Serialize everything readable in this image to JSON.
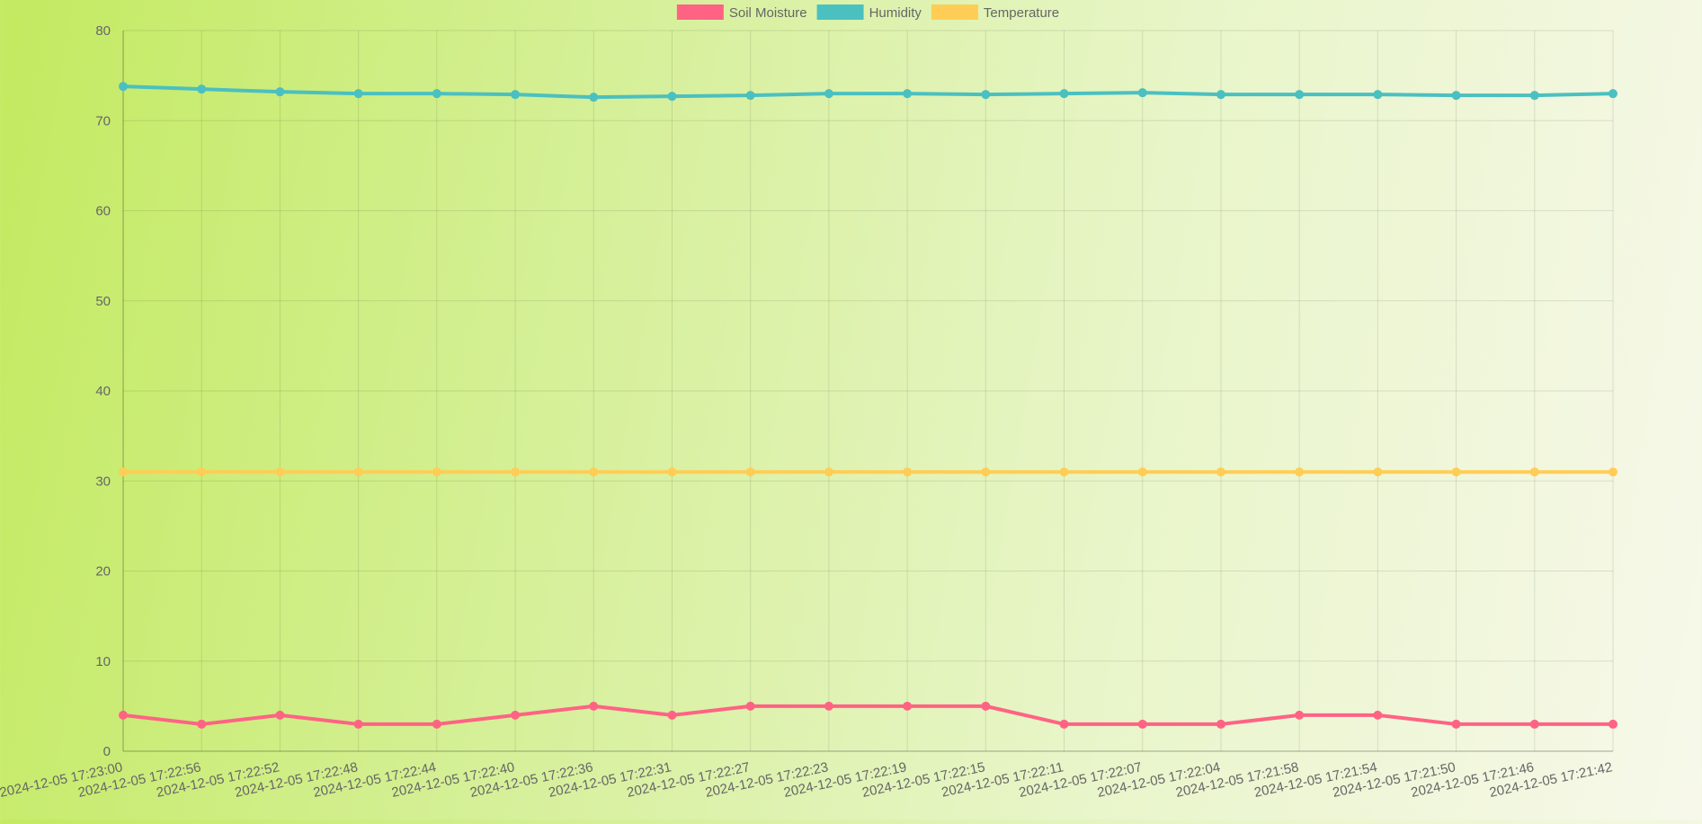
{
  "chart_data": {
    "type": "line",
    "title": "",
    "xlabel": "",
    "ylabel": "",
    "ylim": [
      0,
      80
    ],
    "yticks": [
      0,
      10,
      20,
      30,
      40,
      50,
      60,
      70,
      80
    ],
    "grid": true,
    "legend_position": "top-center",
    "categories": [
      "2024-12-05 17:23:00",
      "2024-12-05 17:22:56",
      "2024-12-05 17:22:52",
      "2024-12-05 17:22:48",
      "2024-12-05 17:22:44",
      "2024-12-05 17:22:40",
      "2024-12-05 17:22:36",
      "2024-12-05 17:22:31",
      "2024-12-05 17:22:27",
      "2024-12-05 17:22:23",
      "2024-12-05 17:22:19",
      "2024-12-05 17:22:15",
      "2024-12-05 17:22:11",
      "2024-12-05 17:22:07",
      "2024-12-05 17:22:04",
      "2024-12-05 17:21:58",
      "2024-12-05 17:21:54",
      "2024-12-05 17:21:50",
      "2024-12-05 17:21:46",
      "2024-12-05 17:21:42"
    ],
    "series": [
      {
        "name": "Soil Moisture",
        "color": "#ff6384",
        "values": [
          4,
          3,
          4,
          3,
          3,
          4,
          5,
          4,
          5,
          5,
          5,
          5,
          3,
          3,
          3,
          4,
          4,
          3,
          3,
          3
        ]
      },
      {
        "name": "Humidity",
        "color": "#4bc0c0",
        "values": [
          73.8,
          73.5,
          73.2,
          73.0,
          73.0,
          72.9,
          72.6,
          72.7,
          72.8,
          73.0,
          73.0,
          72.9,
          73.0,
          73.1,
          72.9,
          72.9,
          72.9,
          72.8,
          72.8,
          73.0
        ]
      },
      {
        "name": "Temperature",
        "color": "#ffcd56",
        "values": [
          31,
          31,
          31,
          31,
          31,
          31,
          31,
          31,
          31,
          31,
          31,
          31,
          31,
          31,
          31,
          31,
          31,
          31,
          31,
          31
        ]
      }
    ]
  }
}
